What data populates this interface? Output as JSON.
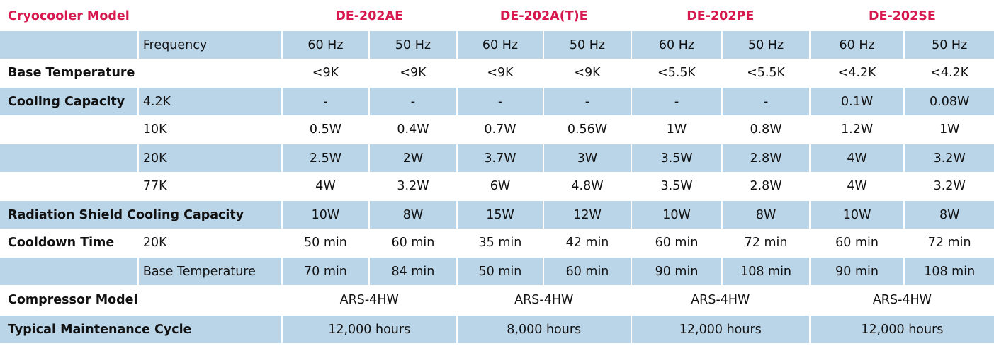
{
  "table": {
    "header_label": "Cryocooler Model",
    "models": [
      "DE-202AE",
      "DE-202A(T)E",
      "DE-202PE",
      "DE-202SE"
    ],
    "frequency": {
      "label": "Frequency",
      "values": [
        "60 Hz",
        "50 Hz",
        "60 Hz",
        "50 Hz",
        "60 Hz",
        "50 Hz",
        "60 Hz",
        "50 Hz"
      ]
    },
    "base_temperature": {
      "label": "Base Temperature",
      "values": [
        "<9K",
        "<9K",
        "<9K",
        "<9K",
        "<5.5K",
        "<5.5K",
        "<4.2K",
        "<4.2K"
      ]
    },
    "cooling_capacity": {
      "label": "Cooling Capacity",
      "rows": [
        {
          "sub": "4.2K",
          "values": [
            "-",
            "-",
            "-",
            "-",
            "-",
            "-",
            "0.1W",
            "0.08W"
          ]
        },
        {
          "sub": "10K",
          "values": [
            "0.5W",
            "0.4W",
            "0.7W",
            "0.56W",
            "1W",
            "0.8W",
            "1.2W",
            "1W"
          ]
        },
        {
          "sub": "20K",
          "values": [
            "2.5W",
            "2W",
            "3.7W",
            "3W",
            "3.5W",
            "2.8W",
            "4W",
            "3.2W"
          ]
        },
        {
          "sub": "77K",
          "values": [
            "4W",
            "3.2W",
            "6W",
            "4.8W",
            "3.5W",
            "2.8W",
            "4W",
            "3.2W"
          ]
        }
      ]
    },
    "radiation_shield": {
      "label": "Radiation Shield Cooling Capacity",
      "values": [
        "10W",
        "8W",
        "15W",
        "12W",
        "10W",
        "8W",
        "10W",
        "8W"
      ]
    },
    "cooldown_time": {
      "label": "Cooldown Time",
      "rows": [
        {
          "sub": "20K",
          "values": [
            "50 min",
            "60 min",
            "35 min",
            "42 min",
            "60 min",
            "72 min",
            "60 min",
            "72 min"
          ]
        },
        {
          "sub": "Base Temperature",
          "values": [
            "70 min",
            "84 min",
            "50 min",
            "60 min",
            "90 min",
            "108 min",
            "90 min",
            "108 min"
          ]
        }
      ]
    },
    "compressor_model": {
      "label": "Compressor Model",
      "values": [
        "ARS-4HW",
        "ARS-4HW",
        "ARS-4HW",
        "ARS-4HW"
      ]
    },
    "maintenance_cycle": {
      "label": "Typical Maintenance Cycle",
      "values": [
        "12,000 hours",
        "8,000 hours",
        "12,000 hours",
        "12,000 hours"
      ]
    },
    "colors": {
      "band": "#bad4e8",
      "accent": "#d6194f"
    }
  }
}
